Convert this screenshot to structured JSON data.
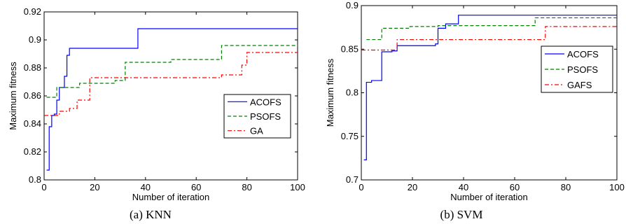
{
  "chart_data": [
    {
      "type": "line",
      "caption": "(a) KNN",
      "xlabel": "Number of iteration",
      "ylabel": "Maximum fitness",
      "xlim": [
        0,
        100
      ],
      "ylim": [
        0.8,
        0.92
      ],
      "xticks": [
        "0",
        "20",
        "40",
        "60",
        "80",
        "100"
      ],
      "yticks": [
        "0.8",
        "0.82",
        "0.84",
        "0.86",
        "0.88",
        "0.9",
        "0.92"
      ],
      "grid": false,
      "legend_position": "right",
      "series": [
        {
          "name": "ACOFS",
          "color": "#0000ff",
          "dash": "solid",
          "x": [
            1,
            2,
            3,
            4,
            5,
            6,
            7,
            8,
            9,
            10,
            37,
            100
          ],
          "y": [
            0.807,
            0.838,
            0.846,
            0.847,
            0.857,
            0.866,
            0.866,
            0.874,
            0.889,
            0.894,
            0.908,
            0.908
          ]
        },
        {
          "name": "PSOFS",
          "color": "#008000",
          "dash": "dashed",
          "x": [
            1,
            3,
            5,
            7,
            8,
            9,
            10,
            14,
            22,
            28,
            32,
            50,
            70,
            100
          ],
          "y": [
            0.859,
            0.859,
            0.866,
            0.866,
            0.866,
            0.866,
            0.866,
            0.869,
            0.869,
            0.871,
            0.884,
            0.886,
            0.896,
            0.896
          ]
        },
        {
          "name": "GA",
          "color": "#ff0000",
          "dash": "dashdot",
          "x": [
            0,
            4,
            6,
            10,
            13,
            18,
            48,
            70,
            78,
            80,
            100
          ],
          "y": [
            0.846,
            0.846,
            0.849,
            0.851,
            0.857,
            0.873,
            0.873,
            0.875,
            0.882,
            0.891,
            0.891
          ]
        }
      ]
    },
    {
      "type": "line",
      "caption": "(b) SVM",
      "xlabel": "Number of iteration",
      "ylabel": "Maximum fitness",
      "xlim": [
        0,
        100
      ],
      "ylim": [
        0.7,
        0.9
      ],
      "xticks": [
        "0",
        "20",
        "40",
        "60",
        "80",
        "100"
      ],
      "yticks": [
        "0.7",
        "0.75",
        "0.8",
        "0.85",
        "0.9"
      ],
      "grid": false,
      "legend_position": "right",
      "series": [
        {
          "name": "ACOFS",
          "color": "#0000ff",
          "dash": "solid",
          "x": [
            1,
            2,
            4,
            6,
            8,
            12,
            14,
            29,
            30,
            33,
            38,
            100
          ],
          "y": [
            0.723,
            0.812,
            0.814,
            0.814,
            0.847,
            0.848,
            0.854,
            0.856,
            0.874,
            0.879,
            0.889,
            0.889
          ]
        },
        {
          "name": "PSOFS",
          "color": "#008000",
          "dash": "dashed",
          "x": [
            2,
            6,
            8,
            19,
            30,
            32,
            66,
            68,
            100
          ],
          "y": [
            0.861,
            0.861,
            0.874,
            0.876,
            0.877,
            0.877,
            0.877,
            0.886,
            0.886
          ]
        },
        {
          "name": "GAFS",
          "color": "#ff0000",
          "dash": "dashdot",
          "x": [
            0,
            13,
            14,
            30,
            72,
            100
          ],
          "y": [
            0.849,
            0.849,
            0.861,
            0.861,
            0.876,
            0.876
          ]
        }
      ]
    }
  ]
}
